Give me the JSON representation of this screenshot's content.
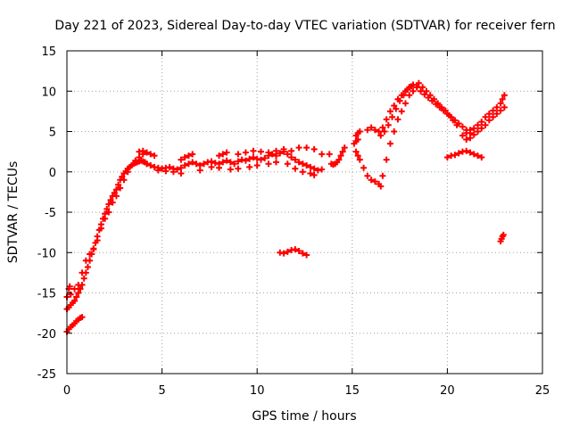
{
  "chart_data": {
    "type": "scatter",
    "title": "Day 221 of 2023, Sidereal Day-to-day VTEC variation (SDTVAR) for receiver fern",
    "xlabel": "GPS time / hours",
    "ylabel": "SDTVAR / TECUs",
    "xlim": [
      0,
      25
    ],
    "ylim": [
      -25,
      15
    ],
    "xticks": [
      0,
      5,
      10,
      15,
      20,
      25
    ],
    "yticks": [
      -25,
      -20,
      -15,
      -10,
      -5,
      0,
      5,
      10,
      15
    ],
    "xtick_labels": [
      "0",
      "5",
      "10",
      "15",
      "20",
      "25"
    ],
    "ytick_labels": [
      "-25",
      "-20",
      "-15",
      "-10",
      "-5",
      "0",
      "5",
      "10",
      "15"
    ],
    "grid": true,
    "marker": "+",
    "marker_color": "#ff0000",
    "series": [
      {
        "name": "main-trace-rise",
        "x": [
          0.0,
          0.1,
          0.2,
          0.3,
          0.4,
          0.5,
          0.6,
          0.7,
          0.8,
          0.9,
          1.0,
          1.1,
          1.2,
          1.3,
          1.4,
          1.5,
          1.6,
          1.7,
          1.8,
          1.9,
          2.0,
          2.1,
          2.2,
          2.3,
          2.4,
          2.5,
          2.6,
          2.7,
          2.8,
          2.9,
          3.0,
          3.1,
          3.2,
          3.3,
          3.4,
          3.5,
          3.6,
          3.7,
          3.8,
          3.9,
          4.0,
          4.1,
          4.2
        ],
        "y": [
          -17.0,
          -16.8,
          -16.5,
          -16.2,
          -16.0,
          -15.5,
          -15.0,
          -14.5,
          -14.0,
          -13.2,
          -12.5,
          -11.8,
          -11.0,
          -10.2,
          -9.5,
          -8.8,
          -8.0,
          -7.2,
          -6.5,
          -5.8,
          -5.2,
          -4.6,
          -4.0,
          -3.5,
          -3.0,
          -2.6,
          -2.2,
          -1.6,
          -1.0,
          -0.6,
          -0.2,
          0.1,
          0.4,
          0.6,
          0.8,
          1.0,
          1.1,
          1.2,
          1.3,
          1.4,
          1.3,
          1.2,
          1.0
        ]
      },
      {
        "name": "main-trace-upper-band",
        "x": [
          0.0,
          0.2,
          0.4,
          0.6,
          0.8,
          1.0,
          1.2,
          1.4,
          1.6,
          1.8,
          2.0,
          2.2,
          2.4,
          2.6,
          2.8,
          3.0,
          3.2,
          3.4,
          3.6,
          3.8,
          4.0
        ],
        "y": [
          -15.5,
          -15.2,
          -14.5,
          -14.0,
          -12.5,
          -11.0,
          -10.2,
          -9.6,
          -8.5,
          -7.0,
          -5.8,
          -5.0,
          -3.8,
          -3.0,
          -2.0,
          -1.0,
          0.0,
          0.8,
          1.4,
          1.8,
          2.2
        ]
      },
      {
        "name": "main-trace-low-start",
        "x": [
          0.0,
          0.1,
          0.2,
          0.3,
          0.4,
          0.5,
          0.6,
          0.7,
          0.8
        ],
        "y": [
          -19.8,
          -19.5,
          -19.2,
          -19.0,
          -18.8,
          -18.5,
          -18.3,
          -18.1,
          -18.0
        ]
      },
      {
        "name": "start-outlier",
        "x": [
          0.1,
          0.15
        ],
        "y": [
          -14.5,
          -14.2
        ]
      },
      {
        "name": "plateau",
        "x": [
          4.2,
          4.4,
          4.6,
          4.8,
          5.0,
          5.2,
          5.4,
          5.6,
          5.8,
          6.0,
          6.2,
          6.4,
          6.6,
          6.8,
          7.0,
          7.2,
          7.4,
          7.6,
          7.8,
          8.0,
          8.2,
          8.4,
          8.6,
          8.8,
          9.0,
          9.2,
          9.4,
          9.6,
          9.8,
          10.0,
          10.2,
          10.4,
          10.6,
          10.8,
          11.0,
          11.2,
          11.4,
          11.6,
          11.8,
          12.0,
          12.2,
          12.4,
          12.6,
          12.8,
          13.0,
          13.2,
          13.4
        ],
        "y": [
          1.0,
          0.8,
          0.6,
          0.5,
          0.4,
          0.5,
          0.6,
          0.4,
          0.3,
          0.5,
          0.8,
          1.0,
          1.2,
          1.0,
          0.8,
          1.0,
          1.2,
          1.3,
          1.1,
          1.0,
          1.2,
          1.4,
          1.2,
          1.0,
          1.3,
          1.5,
          1.4,
          1.6,
          1.8,
          1.6,
          1.5,
          1.7,
          2.0,
          2.2,
          2.0,
          2.3,
          2.5,
          2.2,
          1.8,
          1.5,
          1.2,
          1.0,
          0.8,
          0.6,
          0.4,
          0.2,
          0.3
        ]
      },
      {
        "name": "plateau-upper",
        "x": [
          3.8,
          4.0,
          4.2,
          4.4,
          4.6,
          6.0,
          6.2,
          6.4,
          6.6,
          8.0,
          8.2,
          8.4,
          9.0,
          9.4,
          9.8,
          10.2,
          10.6,
          11.0,
          11.4,
          11.8,
          12.2,
          12.6,
          13.0,
          13.4,
          13.8
        ],
        "y": [
          2.5,
          2.6,
          2.4,
          2.2,
          2.0,
          1.5,
          1.8,
          2.0,
          2.2,
          2.0,
          2.2,
          2.4,
          2.2,
          2.4,
          2.6,
          2.5,
          2.4,
          2.6,
          2.8,
          2.6,
          3.0,
          3.0,
          2.8,
          2.2,
          2.2
        ]
      },
      {
        "name": "plateau-lower",
        "x": [
          4.8,
          5.2,
          5.6,
          6.0,
          7.0,
          7.6,
          8.0,
          8.6,
          9.0,
          9.6,
          10.0,
          10.6,
          11.0,
          11.6,
          12.0,
          12.4,
          12.8,
          13.0
        ],
        "y": [
          0.2,
          0.1,
          0.0,
          -0.2,
          0.2,
          0.6,
          0.5,
          0.3,
          0.4,
          0.6,
          0.8,
          1.0,
          1.2,
          1.0,
          0.4,
          0.0,
          -0.2,
          -0.4
        ]
      },
      {
        "name": "dip-cluster",
        "x": [
          11.2,
          11.4,
          11.6,
          11.8,
          12.0,
          12.2,
          12.4,
          12.6
        ],
        "y": [
          -10.0,
          -10.1,
          -9.9,
          -9.7,
          -9.6,
          -9.8,
          -10.1,
          -10.3
        ]
      },
      {
        "name": "gap-points",
        "x": [
          13.9,
          14.0,
          14.1,
          14.2,
          14.3,
          14.4,
          14.5,
          14.6
        ],
        "y": [
          1.0,
          0.9,
          1.0,
          1.2,
          1.5,
          2.0,
          2.5,
          3.0
        ]
      },
      {
        "name": "trace-15h-upper",
        "x": [
          15.2,
          15.3,
          15.4,
          15.8,
          16.0,
          16.2,
          16.4,
          16.6,
          16.8,
          17.0,
          17.2,
          17.4,
          17.6,
          17.8,
          18.0,
          18.2,
          18.4
        ],
        "y": [
          4.5,
          4.8,
          5.0,
          5.2,
          5.5,
          5.2,
          5.0,
          5.5,
          6.5,
          7.5,
          8.2,
          9.0,
          9.5,
          10.0,
          10.5,
          10.8,
          10.5
        ]
      },
      {
        "name": "trace-15h-lower",
        "x": [
          15.2,
          15.3,
          15.4,
          15.6,
          15.8,
          16.0,
          16.2,
          16.4,
          16.5,
          16.6,
          16.8,
          17.0,
          17.2,
          17.4,
          17.6,
          17.8,
          18.0,
          18.2
        ],
        "y": [
          2.5,
          2.0,
          1.5,
          0.5,
          -0.5,
          -1.0,
          -1.2,
          -1.5,
          -1.8,
          -0.5,
          1.5,
          3.5,
          5.0,
          6.5,
          7.5,
          8.5,
          9.5,
          10.0
        ]
      },
      {
        "name": "trace-15h-mid",
        "x": [
          15.1,
          15.2,
          15.3,
          16.5,
          16.7,
          16.9,
          17.1,
          17.3,
          17.5,
          17.7,
          17.9,
          18.1
        ],
        "y": [
          3.5,
          3.8,
          4.0,
          4.5,
          5.0,
          5.8,
          6.8,
          7.8,
          8.8,
          9.5,
          10.2,
          10.6
        ]
      },
      {
        "name": "peak-descent",
        "x": [
          18.4,
          18.6,
          18.8,
          19.0,
          19.2,
          19.4,
          19.6,
          19.8,
          20.0,
          20.2,
          20.4,
          20.6,
          20.8,
          21.0,
          21.2
        ],
        "y": [
          10.5,
          10.0,
          9.6,
          9.2,
          8.8,
          8.4,
          8.0,
          7.6,
          7.2,
          6.8,
          6.4,
          6.0,
          5.6,
          5.2,
          4.8
        ]
      },
      {
        "name": "peak-descent-upper",
        "x": [
          18.5,
          18.7,
          18.9,
          19.1,
          19.3,
          19.5,
          19.7,
          19.9,
          20.1,
          20.3,
          20.5
        ],
        "y": [
          11.0,
          10.5,
          10.0,
          9.5,
          9.0,
          8.5,
          8.0,
          7.6,
          7.0,
          6.4,
          5.8
        ]
      },
      {
        "name": "late-low",
        "x": [
          20.0,
          20.2,
          20.4,
          20.6,
          20.8,
          21.0,
          21.2,
          21.4,
          21.6,
          21.8
        ],
        "y": [
          1.8,
          2.0,
          2.1,
          2.3,
          2.5,
          2.6,
          2.4,
          2.2,
          2.0,
          1.8
        ]
      },
      {
        "name": "final-rise",
        "x": [
          20.8,
          21.0,
          21.2,
          21.4,
          21.6,
          21.8,
          22.0,
          22.2,
          22.4,
          22.6,
          22.8,
          22.9,
          23.0
        ],
        "y": [
          4.5,
          4.8,
          5.2,
          5.4,
          5.8,
          6.2,
          6.8,
          7.2,
          7.6,
          8.0,
          8.5,
          9.0,
          9.5
        ]
      },
      {
        "name": "final-rise-lower",
        "x": [
          21.0,
          21.2,
          21.4,
          21.6,
          21.8,
          22.0,
          22.2,
          22.4,
          22.6,
          22.8,
          23.0
        ],
        "y": [
          4.0,
          4.2,
          4.6,
          5.0,
          5.4,
          5.8,
          6.4,
          6.8,
          7.2,
          7.6,
          8.0
        ]
      },
      {
        "name": "final-outlier",
        "x": [
          22.8,
          22.85,
          22.9,
          22.95
        ],
        "y": [
          -8.6,
          -8.3,
          -8.0,
          -7.8
        ]
      }
    ]
  }
}
